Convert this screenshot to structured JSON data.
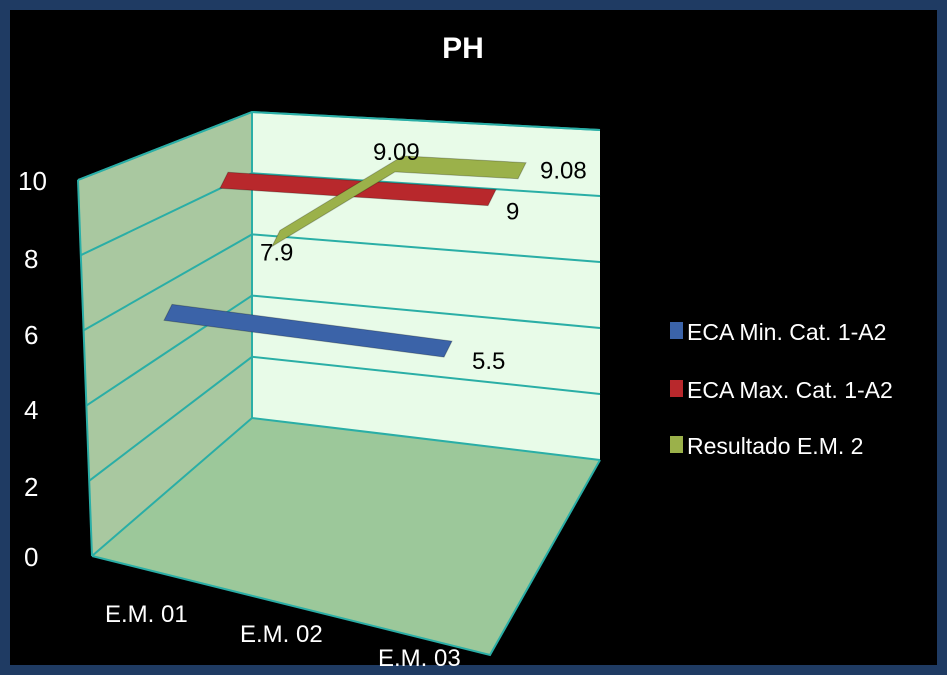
{
  "chart_data": {
    "type": "line",
    "title": "PH",
    "categories": [
      "E.M. 01",
      "E.M. 02",
      "E.M. 03"
    ],
    "yticks": [
      "0",
      "2",
      "4",
      "6",
      "8",
      "10"
    ],
    "ylim": [
      0,
      10
    ],
    "grid": true,
    "legend_position": "right",
    "series": [
      {
        "name": "ECA Min. Cat. 1-A2",
        "values": [
          5.5,
          5.5,
          5.5
        ],
        "color": "#3b63a8",
        "data_labels": [
          {
            "index": 2,
            "text": "5.5"
          }
        ]
      },
      {
        "name": "ECA Max. Cat. 1-A2",
        "values": [
          9,
          9,
          9
        ],
        "color": "#b8282c",
        "data_labels": [
          {
            "index": 2,
            "text": "9"
          }
        ]
      },
      {
        "name": "Resultado E.M. 2",
        "values": [
          7.9,
          9.09,
          9.08
        ],
        "color": "#9bb14a",
        "data_labels": [
          {
            "index": 0,
            "text": "7.9"
          },
          {
            "index": 1,
            "text": "9.09"
          },
          {
            "index": 2,
            "text": "9.08"
          }
        ]
      }
    ]
  },
  "colors": {
    "background": "#000000",
    "border": "#1f3b63",
    "back_wall": "#e8fbe8",
    "side_wall": "#a9c8a0",
    "floor": "#9cc89a",
    "gridline": "#2aaea6"
  }
}
